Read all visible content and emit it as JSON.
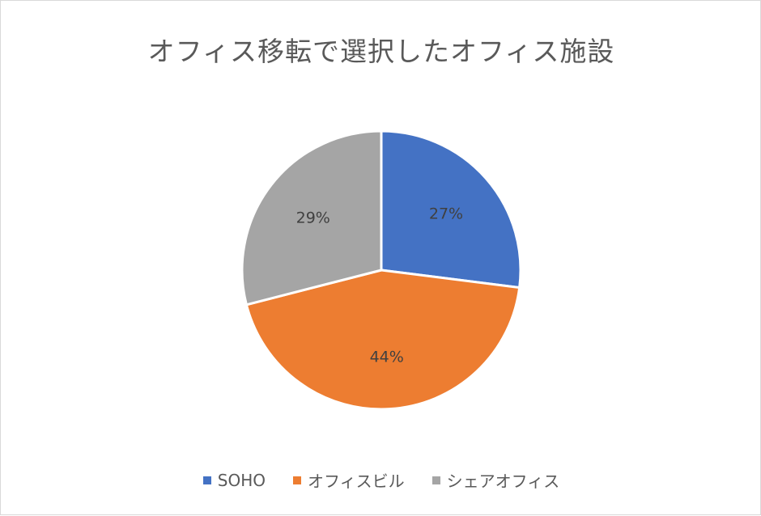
{
  "chart_data": {
    "type": "pie",
    "title": "オフィス移転で選択したオフィス施設",
    "categories": [
      "SOHO",
      "オフィスビル",
      "シェアオフィス"
    ],
    "values": [
      27,
      44,
      29
    ],
    "labels": [
      "27%",
      "44%",
      "29%"
    ],
    "colors": [
      "#4472c4",
      "#ed7d31",
      "#a5a5a5"
    ],
    "legend_position": "bottom"
  }
}
